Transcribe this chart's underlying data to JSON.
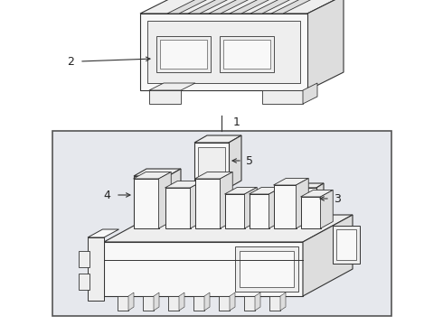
{
  "white": "#ffffff",
  "bg_box": "#e8eaf0",
  "dark": "#222222",
  "line_color": "#333333",
  "face_light": "#f8f8f8",
  "face_mid": "#eeeeee",
  "face_dark": "#dddddd",
  "figsize": [
    4.9,
    3.6
  ],
  "dpi": 100
}
